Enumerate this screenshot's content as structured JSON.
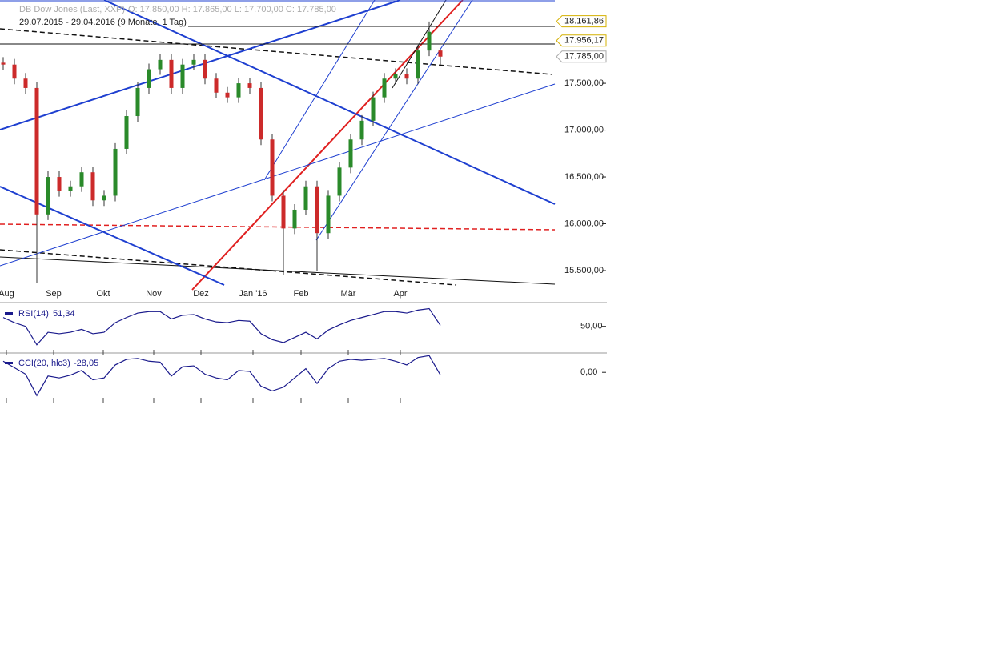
{
  "header": {
    "name": "DB Dow Jones (Last, XXP)",
    "ohlc": "O: 17.850,00  H: 17.865,00  L: 17.700,00  C: 17.785,00",
    "range": "29.07.2015 - 29.04.2016 (9 Monate, 1 Tag)"
  },
  "chart_data": {
    "type": "candlestick",
    "months": [
      "Aug",
      "Sep",
      "Okt",
      "Nov",
      "Dez",
      "Jan '16",
      "Feb",
      "Mär",
      "Apr"
    ],
    "open": [
      17720,
      17700,
      17550,
      17450,
      16100,
      16500,
      16350,
      16400,
      16550,
      16250,
      16300,
      16800,
      17150,
      17450,
      17650,
      17750,
      17450,
      17700,
      17750,
      17550,
      17400,
      17350,
      17500,
      17450,
      16900,
      16300,
      15950,
      16150,
      16400,
      15900,
      16300,
      16600,
      16900,
      17100,
      17350,
      17550,
      17600,
      17550,
      17850,
      17850
    ],
    "high": [
      17780,
      17760,
      17610,
      17510,
      16560,
      16560,
      16460,
      16610,
      16610,
      16360,
      16860,
      17210,
      17510,
      17710,
      17810,
      17810,
      17760,
      17810,
      17810,
      17610,
      17460,
      17560,
      17560,
      17510,
      16960,
      16360,
      16210,
      16460,
      16460,
      16360,
      16660,
      16960,
      17160,
      17410,
      17610,
      17660,
      17660,
      17910,
      18160,
      17865
    ],
    "low": [
      17640,
      17490,
      17390,
      15370,
      16040,
      16290,
      16290,
      16340,
      16190,
      16190,
      16240,
      16740,
      17090,
      17390,
      17590,
      17390,
      17390,
      17640,
      17490,
      17340,
      17290,
      17290,
      17390,
      16840,
      16240,
      15450,
      15890,
      16090,
      15500,
      15840,
      16240,
      16540,
      16840,
      17040,
      17290,
      17490,
      17490,
      17490,
      17790,
      17700
    ],
    "close": [
      17700,
      17550,
      17450,
      16100,
      16500,
      16350,
      16400,
      16550,
      16250,
      16300,
      16800,
      17150,
      17450,
      17650,
      17750,
      17450,
      17700,
      17750,
      17550,
      17400,
      17350,
      17500,
      17450,
      16900,
      16300,
      15950,
      16150,
      16400,
      15900,
      16300,
      16600,
      16900,
      17100,
      17350,
      17550,
      17600,
      17550,
      17850,
      18050,
      17785
    ],
    "up_color": "#2a8a2a",
    "down_color": "#cc2a2a",
    "ylim": [
      15175,
      18390
    ],
    "yticks": [
      {
        "value": 17500,
        "label": "17.500,00"
      },
      {
        "value": 17000,
        "label": "17.000,00"
      },
      {
        "value": 16500,
        "label": "16.500,00"
      },
      {
        "value": 16000,
        "label": "16.000,00"
      },
      {
        "value": 15500,
        "label": "15.500,00"
      }
    ],
    "price_markers": [
      {
        "value": 18161.86,
        "label": "18.161,86"
      },
      {
        "value": 17956.17,
        "label": "17.956,17"
      },
      {
        "value": 17785,
        "label": "17.785,00"
      }
    ],
    "rsi": {
      "name": "RSI(14)",
      "value_label": "51,34",
      "color": "#1a1a8c",
      "ylim": [
        15,
        80
      ],
      "yticks": [
        {
          "value": 50,
          "label": "50,00"
        }
      ],
      "values": [
        62,
        55,
        50,
        25,
        42,
        40,
        42,
        46,
        40,
        42,
        55,
        62,
        68,
        70,
        70,
        60,
        65,
        66,
        60,
        56,
        55,
        58,
        57,
        40,
        32,
        28,
        35,
        42,
        33,
        45,
        52,
        58,
        62,
        66,
        70,
        70,
        68,
        72,
        74,
        51.34
      ]
    },
    "cci": {
      "name": "CCI(20, hlc3)",
      "value_label": "-28,05",
      "color": "#1a1a8c",
      "ylim": [
        -300,
        200
      ],
      "yticks": [
        {
          "value": 0,
          "label": "0,00"
        }
      ],
      "values": [
        120,
        50,
        -20,
        -250,
        -40,
        -60,
        -30,
        20,
        -80,
        -60,
        80,
        140,
        150,
        120,
        110,
        -40,
        60,
        70,
        -20,
        -60,
        -80,
        20,
        10,
        -150,
        -200,
        -160,
        -60,
        40,
        -120,
        40,
        120,
        140,
        130,
        140,
        150,
        120,
        80,
        160,
        180,
        -28.05
      ]
    }
  }
}
